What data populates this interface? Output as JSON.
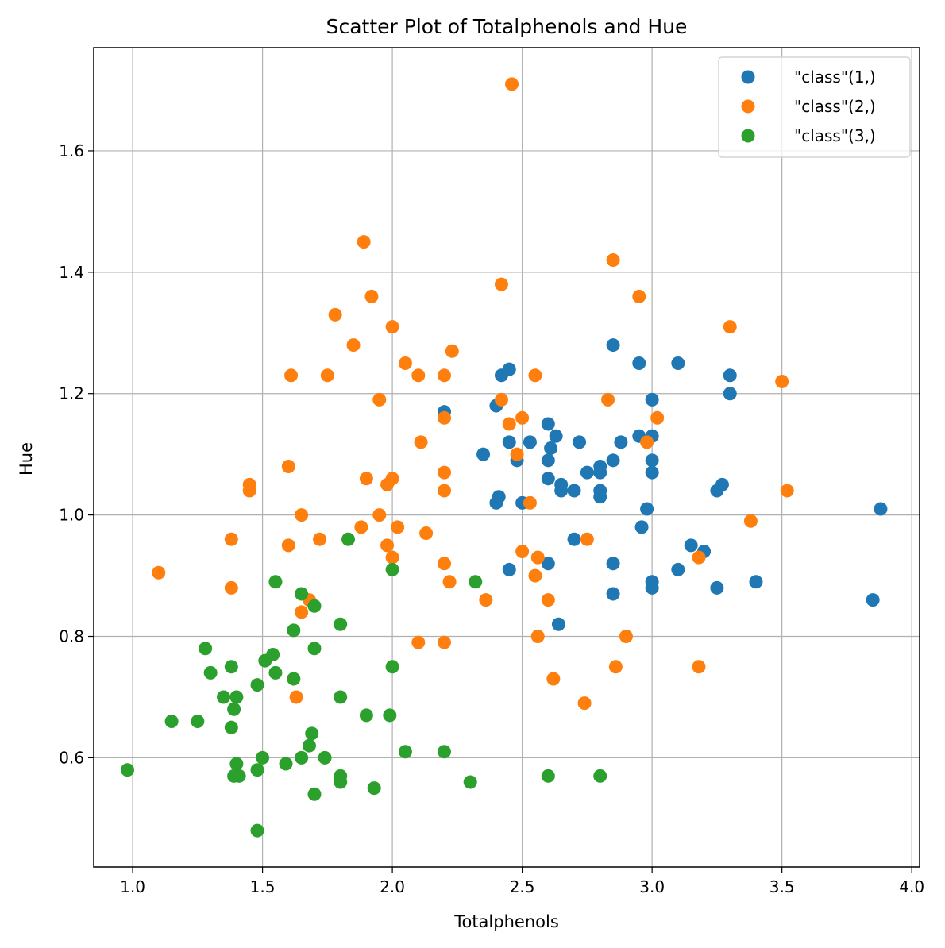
{
  "chart_data": {
    "type": "scatter",
    "title": "Scatter Plot of Totalphenols and Hue",
    "xlabel": "Totalphenols",
    "ylabel": "Hue",
    "xlim": [
      0.85,
      4.03
    ],
    "ylim": [
      0.42,
      1.77
    ],
    "xticks": [
      1.0,
      1.5,
      2.0,
      2.5,
      3.0,
      3.5,
      4.0
    ],
    "xtick_labels": [
      "1.0",
      "1.5",
      "2.0",
      "2.5",
      "3.0",
      "3.5",
      "4.0"
    ],
    "yticks": [
      0.6,
      0.8,
      1.0,
      1.2,
      1.4,
      1.6
    ],
    "ytick_labels": [
      "0.6",
      "0.8",
      "1.0",
      "1.2",
      "1.4",
      "1.6"
    ],
    "grid": true,
    "legend_position": "top-right",
    "series": [
      {
        "name": "\"class\"(1,)",
        "color": "#1f77b4",
        "points": [
          [
            2.2,
            1.17
          ],
          [
            2.4,
            1.18
          ],
          [
            2.42,
            1.23
          ],
          [
            2.45,
            1.24
          ],
          [
            2.35,
            1.1
          ],
          [
            2.45,
            1.12
          ],
          [
            2.48,
            1.09
          ],
          [
            2.53,
            1.12
          ],
          [
            2.4,
            1.02
          ],
          [
            2.41,
            1.03
          ],
          [
            2.5,
            1.02
          ],
          [
            2.45,
            0.91
          ],
          [
            2.6,
            1.15
          ],
          [
            2.61,
            1.11
          ],
          [
            2.63,
            1.13
          ],
          [
            2.6,
            1.09
          ],
          [
            2.6,
            1.06
          ],
          [
            2.65,
            1.05
          ],
          [
            2.65,
            1.04
          ],
          [
            2.7,
            1.04
          ],
          [
            2.72,
            1.12
          ],
          [
            2.75,
            1.07
          ],
          [
            2.8,
            1.08
          ],
          [
            2.8,
            1.07
          ],
          [
            2.8,
            1.04
          ],
          [
            2.8,
            1.03
          ],
          [
            2.85,
            1.09
          ],
          [
            2.88,
            1.12
          ],
          [
            2.85,
            1.28
          ],
          [
            2.95,
            1.25
          ],
          [
            2.95,
            1.13
          ],
          [
            2.98,
            1.01
          ],
          [
            2.96,
            0.98
          ],
          [
            3.0,
            1.19
          ],
          [
            3.0,
            1.13
          ],
          [
            3.0,
            1.09
          ],
          [
            3.0,
            1.07
          ],
          [
            3.1,
            1.25
          ],
          [
            3.3,
            1.23
          ],
          [
            3.3,
            1.2
          ],
          [
            3.27,
            1.05
          ],
          [
            3.25,
            1.04
          ],
          [
            2.7,
            0.96
          ],
          [
            2.6,
            0.92
          ],
          [
            2.64,
            0.82
          ],
          [
            2.85,
            0.92
          ],
          [
            2.85,
            0.87
          ],
          [
            3.0,
            0.89
          ],
          [
            3.0,
            0.88
          ],
          [
            3.1,
            0.91
          ],
          [
            3.15,
            0.95
          ],
          [
            3.2,
            0.94
          ],
          [
            3.25,
            0.88
          ],
          [
            3.4,
            0.89
          ],
          [
            3.85,
            0.86
          ],
          [
            3.88,
            1.01
          ]
        ]
      },
      {
        "name": "\"class\"(2,)",
        "color": "#ff7f0e",
        "points": [
          [
            2.46,
            1.71
          ],
          [
            1.89,
            1.45
          ],
          [
            2.85,
            1.42
          ],
          [
            2.42,
            1.38
          ],
          [
            1.92,
            1.36
          ],
          [
            2.95,
            1.36
          ],
          [
            1.78,
            1.33
          ],
          [
            2.0,
            1.31
          ],
          [
            3.3,
            1.31
          ],
          [
            1.85,
            1.28
          ],
          [
            2.23,
            1.27
          ],
          [
            2.05,
            1.25
          ],
          [
            1.61,
            1.23
          ],
          [
            1.75,
            1.23
          ],
          [
            2.1,
            1.23
          ],
          [
            2.2,
            1.23
          ],
          [
            2.55,
            1.23
          ],
          [
            3.5,
            1.22
          ],
          [
            1.95,
            1.19
          ],
          [
            2.42,
            1.19
          ],
          [
            2.83,
            1.19
          ],
          [
            2.2,
            1.16
          ],
          [
            2.5,
            1.16
          ],
          [
            3.02,
            1.16
          ],
          [
            2.45,
            1.15
          ],
          [
            2.11,
            1.12
          ],
          [
            2.98,
            1.12
          ],
          [
            2.48,
            1.1
          ],
          [
            1.6,
            1.08
          ],
          [
            2.2,
            1.07
          ],
          [
            1.9,
            1.06
          ],
          [
            2.0,
            1.06
          ],
          [
            1.45,
            1.05
          ],
          [
            1.98,
            1.05
          ],
          [
            1.45,
            1.04
          ],
          [
            2.2,
            1.04
          ],
          [
            3.52,
            1.04
          ],
          [
            2.53,
            1.02
          ],
          [
            1.65,
            1.0
          ],
          [
            1.95,
            1.0
          ],
          [
            3.38,
            0.99
          ],
          [
            1.88,
            0.98
          ],
          [
            2.02,
            0.98
          ],
          [
            2.13,
            0.97
          ],
          [
            1.38,
            0.96
          ],
          [
            1.72,
            0.96
          ],
          [
            2.75,
            0.96
          ],
          [
            1.6,
            0.95
          ],
          [
            1.98,
            0.95
          ],
          [
            2.5,
            0.94
          ],
          [
            2.0,
            0.93
          ],
          [
            2.56,
            0.93
          ],
          [
            3.18,
            0.93
          ],
          [
            2.2,
            0.92
          ],
          [
            1.1,
            0.905
          ],
          [
            2.55,
            0.9
          ],
          [
            2.22,
            0.89
          ],
          [
            1.38,
            0.88
          ],
          [
            1.68,
            0.86
          ],
          [
            2.36,
            0.86
          ],
          [
            2.6,
            0.86
          ],
          [
            1.65,
            0.84
          ],
          [
            2.56,
            0.8
          ],
          [
            2.9,
            0.8
          ],
          [
            2.1,
            0.79
          ],
          [
            2.2,
            0.79
          ],
          [
            2.86,
            0.75
          ],
          [
            3.18,
            0.75
          ],
          [
            2.62,
            0.73
          ],
          [
            1.63,
            0.7
          ],
          [
            2.74,
            0.69
          ]
        ]
      },
      {
        "name": "\"class\"(3,)",
        "color": "#2ca02c",
        "points": [
          [
            1.83,
            0.96
          ],
          [
            2.0,
            0.91
          ],
          [
            1.55,
            0.89
          ],
          [
            2.32,
            0.89
          ],
          [
            1.65,
            0.87
          ],
          [
            1.7,
            0.85
          ],
          [
            1.62,
            0.81
          ],
          [
            1.8,
            0.82
          ],
          [
            1.28,
            0.78
          ],
          [
            1.7,
            0.78
          ],
          [
            1.54,
            0.77
          ],
          [
            1.51,
            0.76
          ],
          [
            1.38,
            0.75
          ],
          [
            2.0,
            0.75
          ],
          [
            1.3,
            0.74
          ],
          [
            1.55,
            0.74
          ],
          [
            1.62,
            0.73
          ],
          [
            1.48,
            0.72
          ],
          [
            1.35,
            0.7
          ],
          [
            1.4,
            0.7
          ],
          [
            1.8,
            0.7
          ],
          [
            1.39,
            0.68
          ],
          [
            1.9,
            0.67
          ],
          [
            1.99,
            0.67
          ],
          [
            1.15,
            0.66
          ],
          [
            1.25,
            0.66
          ],
          [
            1.38,
            0.65
          ],
          [
            1.69,
            0.64
          ],
          [
            1.68,
            0.62
          ],
          [
            2.05,
            0.61
          ],
          [
            2.2,
            0.61
          ],
          [
            1.5,
            0.6
          ],
          [
            1.65,
            0.6
          ],
          [
            1.74,
            0.6
          ],
          [
            1.4,
            0.59
          ],
          [
            1.59,
            0.59
          ],
          [
            0.98,
            0.58
          ],
          [
            1.48,
            0.58
          ],
          [
            1.39,
            0.57
          ],
          [
            1.41,
            0.57
          ],
          [
            1.8,
            0.57
          ],
          [
            2.6,
            0.57
          ],
          [
            2.8,
            0.57
          ],
          [
            1.8,
            0.56
          ],
          [
            2.3,
            0.56
          ],
          [
            1.93,
            0.55
          ],
          [
            1.7,
            0.54
          ],
          [
            1.48,
            0.48
          ]
        ]
      }
    ]
  }
}
